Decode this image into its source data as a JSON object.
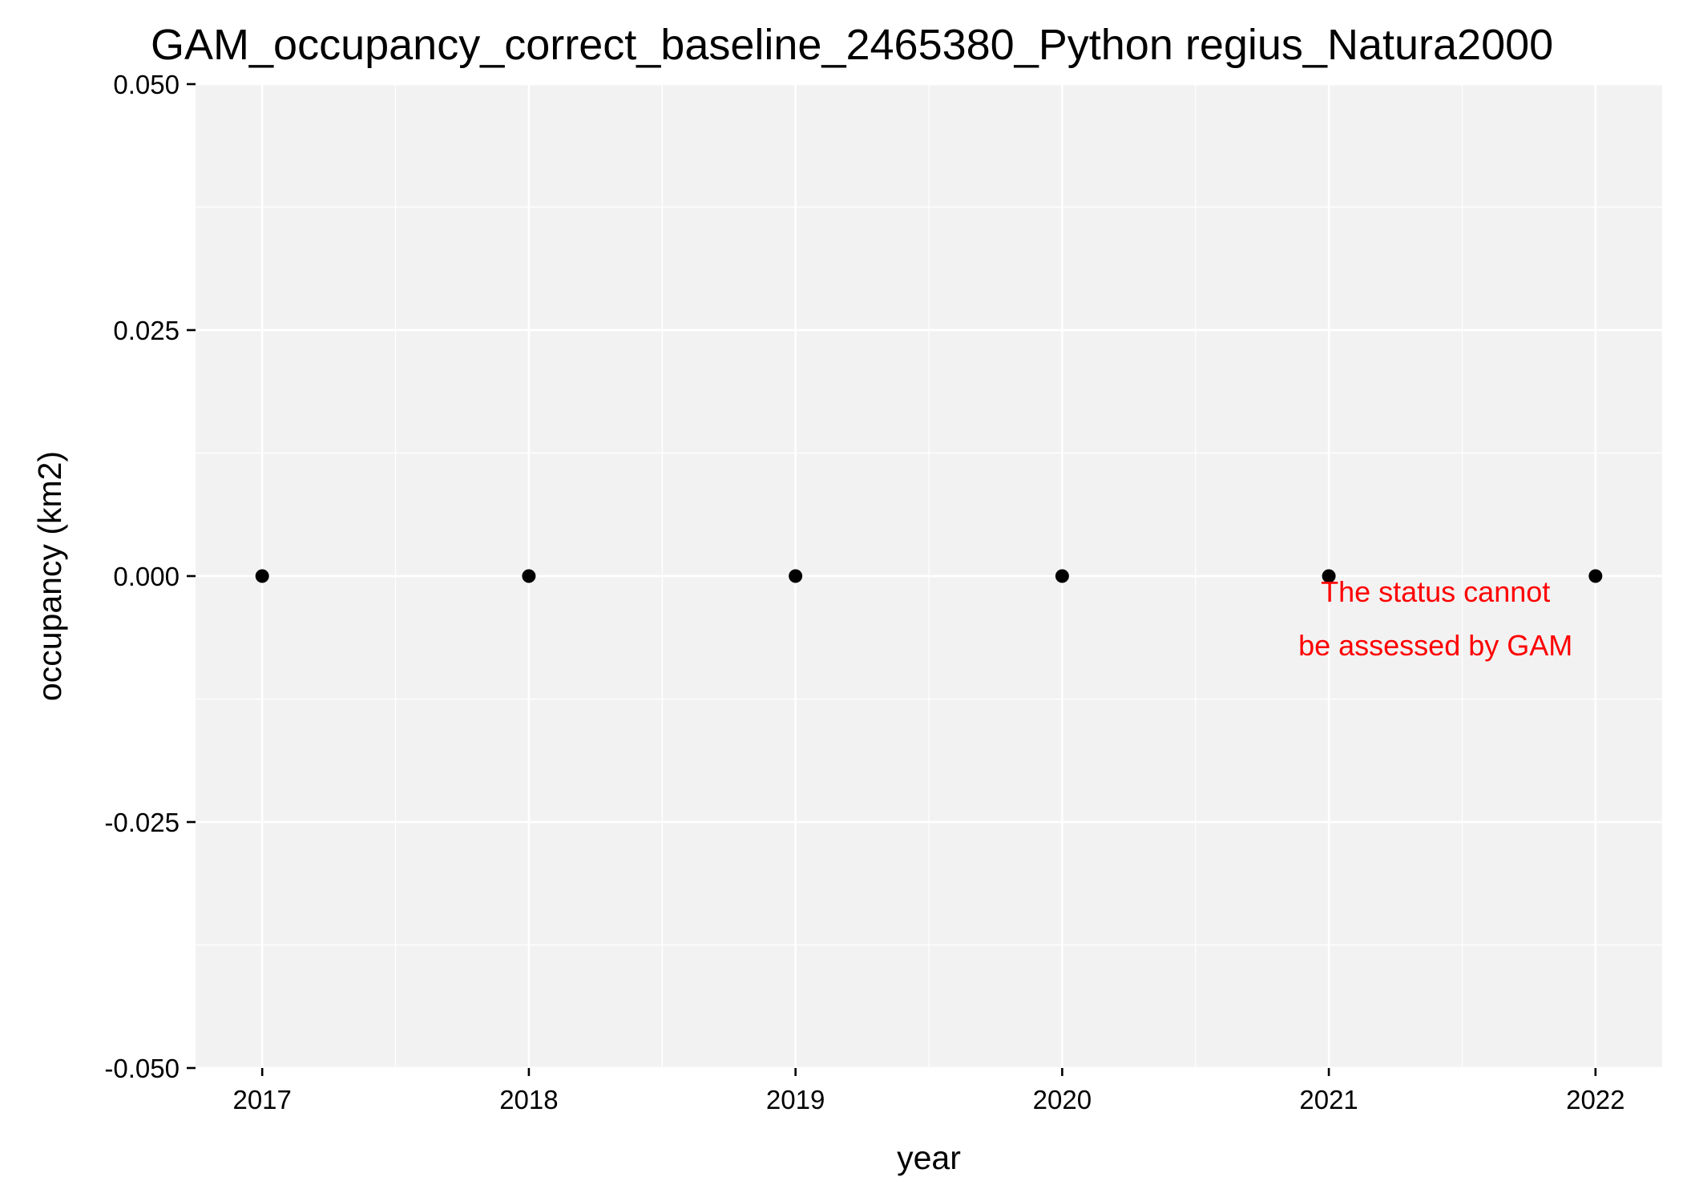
{
  "chart_data": {
    "type": "scatter",
    "title": "GAM_occupancy_correct_baseline_2465380_Python regius_Natura2000",
    "xlabel": "year",
    "ylabel": "occupancy (km2)",
    "x": [
      2017,
      2018,
      2019,
      2020,
      2021,
      2022
    ],
    "y": [
      0,
      0,
      0,
      0,
      0,
      0
    ],
    "xlim": [
      2016.75,
      2022.25
    ],
    "ylim": [
      -0.05,
      0.05
    ],
    "x_ticks": [
      2017,
      2018,
      2019,
      2020,
      2021,
      2022
    ],
    "x_tick_labels": [
      "2017",
      "2018",
      "2019",
      "2020",
      "2021",
      "2022"
    ],
    "y_ticks": [
      -0.05,
      -0.025,
      0,
      0.025,
      0.05
    ],
    "y_tick_labels": [
      "-0.050",
      "-0.025",
      "0.000",
      "0.025",
      "0.050"
    ],
    "grid": true,
    "legend": "none",
    "point_color": "#000000",
    "panel_color": "#f2f2f2",
    "annotation": {
      "lines": [
        "The status cannot",
        "be assessed by GAM"
      ],
      "color": "#ff0000",
      "x": 2021.4,
      "y": 0
    }
  }
}
